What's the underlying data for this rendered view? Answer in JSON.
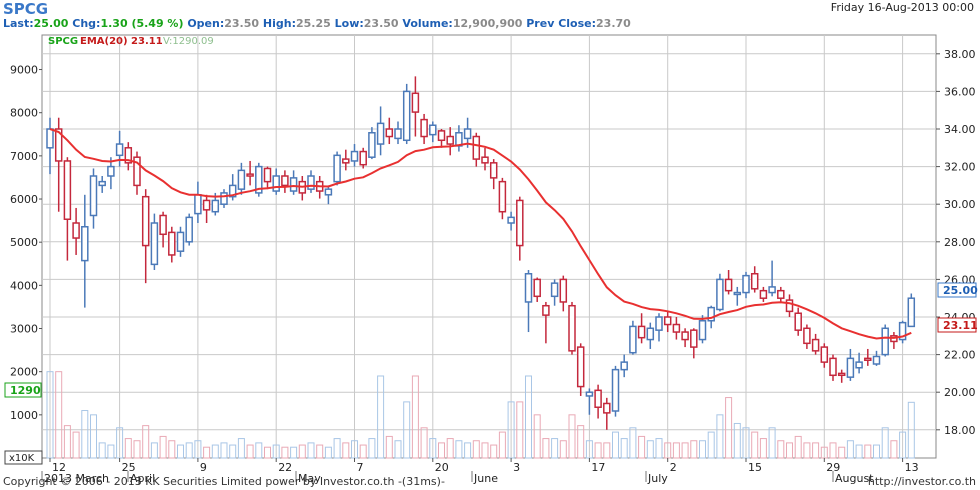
{
  "header": {
    "symbol": "SPCG",
    "datetime": "Friday 16-Aug-2013 00:00",
    "last_label": "Last:",
    "last_value": "25.00",
    "chg_label": "Chg:",
    "chg_value": "1.30 (5.49 %)",
    "open_label": "Open:",
    "open_value": "23.50",
    "high_label": "High:",
    "high_value": "25.25",
    "low_label": "Low:",
    "low_value": "23.50",
    "volume_label": "Volume:",
    "volume_value": "12,900,900",
    "prevclose_label": "Prev Close:",
    "prevclose_value": "23.70"
  },
  "legend": {
    "symbol": "SPCG",
    "ema": "EMA(20) 23.11",
    "volume": "V:1290.09"
  },
  "footer": {
    "copyright": "Copyright © 2006 - 2013 KK Securities Limited power by Investor.co.th  -(31ms)-",
    "url": "http://investor.co.th"
  },
  "colors": {
    "up": "#4b79b8",
    "down": "#c4283c",
    "ema": "#e83030",
    "grid": "#c9c9c9",
    "vol_up": "#a9c6e6",
    "vol_down": "#e9a9b5"
  },
  "chart_data": {
    "type": "candlestick",
    "price_axis": {
      "range": [
        16.5,
        39.0
      ],
      "ticks": [
        "18.00",
        "20.00",
        "22.00",
        "24.00",
        "26.00",
        "28.00",
        "30.00",
        "32.00",
        "34.00",
        "36.00",
        "38.00"
      ]
    },
    "volume_axis": {
      "range": [
        0,
        9800
      ],
      "ticks": [
        "0",
        "1000",
        "2000",
        "3000",
        "4000",
        "5000",
        "6000",
        "7000",
        "8000",
        "9000"
      ],
      "unit_label": "x10K"
    },
    "last_price_tag": "25.00",
    "ema_tag": "23.11",
    "volume_tag": "1290",
    "date_ticks": [
      "12",
      "25",
      "9",
      "22",
      "7",
      "20",
      "3",
      "17",
      "2",
      "15",
      "29",
      "13"
    ],
    "month_labels": [
      "2013 March",
      "April",
      "May",
      "June",
      "July",
      "August"
    ],
    "candles": [
      {
        "o": 33.0,
        "h": 34.6,
        "l": 31.6,
        "c": 34.0,
        "v": 2000
      },
      {
        "o": 34.0,
        "h": 34.6,
        "l": 29.6,
        "c": 32.3,
        "v": 2000
      },
      {
        "o": 32.3,
        "h": 32.5,
        "l": 27.0,
        "c": 29.2,
        "v": 750
      },
      {
        "o": 29.0,
        "h": 29.8,
        "l": 27.3,
        "c": 28.2,
        "v": 600
      },
      {
        "o": 27.0,
        "h": 30.5,
        "l": 24.5,
        "c": 28.8,
        "v": 1100
      },
      {
        "o": 29.4,
        "h": 31.9,
        "l": 28.7,
        "c": 31.5,
        "v": 1000
      },
      {
        "o": 31.0,
        "h": 31.5,
        "l": 30.6,
        "c": 31.2,
        "v": 350
      },
      {
        "o": 31.5,
        "h": 32.5,
        "l": 30.8,
        "c": 32.0,
        "v": 300
      },
      {
        "o": 32.6,
        "h": 33.9,
        "l": 32.0,
        "c": 33.2,
        "v": 700
      },
      {
        "o": 33.0,
        "h": 33.3,
        "l": 31.8,
        "c": 32.2,
        "v": 450
      },
      {
        "o": 32.5,
        "h": 32.8,
        "l": 30.5,
        "c": 31.0,
        "v": 400
      },
      {
        "o": 30.4,
        "h": 30.8,
        "l": 25.8,
        "c": 27.8,
        "v": 750
      },
      {
        "o": 26.8,
        "h": 29.5,
        "l": 26.5,
        "c": 29.0,
        "v": 350
      },
      {
        "o": 29.4,
        "h": 29.6,
        "l": 27.7,
        "c": 28.4,
        "v": 500
      },
      {
        "o": 28.5,
        "h": 28.8,
        "l": 26.9,
        "c": 27.3,
        "v": 400
      },
      {
        "o": 27.5,
        "h": 28.8,
        "l": 27.2,
        "c": 28.5,
        "v": 300
      },
      {
        "o": 28.0,
        "h": 29.5,
        "l": 27.8,
        "c": 29.3,
        "v": 350
      },
      {
        "o": 29.5,
        "h": 31.2,
        "l": 29.0,
        "c": 30.5,
        "v": 400
      },
      {
        "o": 30.2,
        "h": 30.5,
        "l": 29.0,
        "c": 29.7,
        "v": 250
      },
      {
        "o": 29.6,
        "h": 30.6,
        "l": 29.4,
        "c": 30.2,
        "v": 300
      },
      {
        "o": 30.0,
        "h": 30.8,
        "l": 29.8,
        "c": 30.6,
        "v": 350
      },
      {
        "o": 30.4,
        "h": 31.6,
        "l": 30.2,
        "c": 31.0,
        "v": 300
      },
      {
        "o": 30.8,
        "h": 32.2,
        "l": 30.5,
        "c": 31.8,
        "v": 450
      },
      {
        "o": 31.6,
        "h": 32.3,
        "l": 31.0,
        "c": 31.5,
        "v": 300
      },
      {
        "o": 30.6,
        "h": 32.2,
        "l": 30.4,
        "c": 32.0,
        "v": 350
      },
      {
        "o": 31.9,
        "h": 32.0,
        "l": 30.8,
        "c": 31.2,
        "v": 250
      },
      {
        "o": 30.7,
        "h": 31.9,
        "l": 30.5,
        "c": 31.5,
        "v": 300
      },
      {
        "o": 31.5,
        "h": 31.8,
        "l": 30.6,
        "c": 31.0,
        "v": 250
      },
      {
        "o": 30.7,
        "h": 31.8,
        "l": 30.5,
        "c": 31.4,
        "v": 250
      },
      {
        "o": 31.2,
        "h": 31.5,
        "l": 30.2,
        "c": 30.6,
        "v": 300
      },
      {
        "o": 30.8,
        "h": 31.8,
        "l": 30.6,
        "c": 31.5,
        "v": 350
      },
      {
        "o": 31.2,
        "h": 31.5,
        "l": 30.3,
        "c": 30.7,
        "v": 300
      },
      {
        "o": 30.5,
        "h": 31.0,
        "l": 30.0,
        "c": 30.8,
        "v": 250
      },
      {
        "o": 31.2,
        "h": 32.8,
        "l": 31.0,
        "c": 32.6,
        "v": 450
      },
      {
        "o": 32.4,
        "h": 32.9,
        "l": 31.8,
        "c": 32.2,
        "v": 350
      },
      {
        "o": 32.3,
        "h": 33.2,
        "l": 32.0,
        "c": 32.8,
        "v": 400
      },
      {
        "o": 32.8,
        "h": 33.0,
        "l": 31.9,
        "c": 32.1,
        "v": 300
      },
      {
        "o": 32.5,
        "h": 34.1,
        "l": 32.4,
        "c": 33.8,
        "v": 450
      },
      {
        "o": 33.2,
        "h": 35.2,
        "l": 32.6,
        "c": 34.3,
        "v": 1900
      },
      {
        "o": 34.0,
        "h": 34.6,
        "l": 33.2,
        "c": 33.6,
        "v": 500
      },
      {
        "o": 33.5,
        "h": 34.4,
        "l": 33.2,
        "c": 34.0,
        "v": 400
      },
      {
        "o": 33.4,
        "h": 36.4,
        "l": 33.2,
        "c": 36.0,
        "v": 1300
      },
      {
        "o": 35.9,
        "h": 36.8,
        "l": 33.6,
        "c": 34.9,
        "v": 1900
      },
      {
        "o": 34.5,
        "h": 34.8,
        "l": 33.2,
        "c": 33.6,
        "v": 700
      },
      {
        "o": 33.7,
        "h": 34.4,
        "l": 33.3,
        "c": 34.2,
        "v": 450
      },
      {
        "o": 33.9,
        "h": 34.0,
        "l": 33.0,
        "c": 33.4,
        "v": 350
      },
      {
        "o": 33.6,
        "h": 34.1,
        "l": 32.6,
        "c": 33.2,
        "v": 450
      },
      {
        "o": 33.1,
        "h": 34.2,
        "l": 32.8,
        "c": 33.8,
        "v": 400
      },
      {
        "o": 33.5,
        "h": 34.6,
        "l": 33.0,
        "c": 34.0,
        "v": 350
      },
      {
        "o": 33.6,
        "h": 33.8,
        "l": 32.0,
        "c": 32.4,
        "v": 400
      },
      {
        "o": 32.5,
        "h": 33.0,
        "l": 31.8,
        "c": 32.2,
        "v": 350
      },
      {
        "o": 32.2,
        "h": 32.4,
        "l": 30.8,
        "c": 31.4,
        "v": 300
      },
      {
        "o": 31.2,
        "h": 31.4,
        "l": 29.2,
        "c": 29.6,
        "v": 600
      },
      {
        "o": 29.0,
        "h": 29.6,
        "l": 28.6,
        "c": 29.3,
        "v": 1300
      },
      {
        "o": 30.2,
        "h": 30.4,
        "l": 27.0,
        "c": 27.8,
        "v": 1300
      },
      {
        "o": 24.8,
        "h": 26.5,
        "l": 23.2,
        "c": 26.3,
        "v": 1900
      },
      {
        "o": 26.0,
        "h": 26.1,
        "l": 24.8,
        "c": 25.1,
        "v": 1000
      },
      {
        "o": 24.6,
        "h": 24.8,
        "l": 22.6,
        "c": 24.1,
        "v": 450
      },
      {
        "o": 25.1,
        "h": 26.0,
        "l": 24.6,
        "c": 25.8,
        "v": 450
      },
      {
        "o": 26.0,
        "h": 26.2,
        "l": 24.3,
        "c": 24.8,
        "v": 400
      },
      {
        "o": 24.6,
        "h": 24.8,
        "l": 22.0,
        "c": 22.2,
        "v": 1000
      },
      {
        "o": 22.4,
        "h": 22.6,
        "l": 19.8,
        "c": 20.3,
        "v": 750
      },
      {
        "o": 19.8,
        "h": 20.2,
        "l": 18.8,
        "c": 20.0,
        "v": 400
      },
      {
        "o": 20.1,
        "h": 20.4,
        "l": 18.6,
        "c": 19.2,
        "v": 350
      },
      {
        "o": 19.4,
        "h": 19.7,
        "l": 18.0,
        "c": 18.9,
        "v": 350
      },
      {
        "o": 19.0,
        "h": 21.4,
        "l": 18.7,
        "c": 21.2,
        "v": 600
      },
      {
        "o": 21.2,
        "h": 22.0,
        "l": 20.8,
        "c": 21.6,
        "v": 450
      },
      {
        "o": 22.1,
        "h": 23.8,
        "l": 22.0,
        "c": 23.5,
        "v": 700
      },
      {
        "o": 23.5,
        "h": 24.2,
        "l": 22.6,
        "c": 22.9,
        "v": 500
      },
      {
        "o": 22.8,
        "h": 23.7,
        "l": 22.3,
        "c": 23.4,
        "v": 400
      },
      {
        "o": 23.3,
        "h": 24.2,
        "l": 22.7,
        "c": 24.0,
        "v": 450
      },
      {
        "o": 24.0,
        "h": 24.3,
        "l": 23.2,
        "c": 23.6,
        "v": 350
      },
      {
        "o": 23.6,
        "h": 24.0,
        "l": 22.8,
        "c": 23.2,
        "v": 350
      },
      {
        "o": 23.2,
        "h": 23.4,
        "l": 22.4,
        "c": 22.8,
        "v": 350
      },
      {
        "o": 23.3,
        "h": 23.4,
        "l": 21.8,
        "c": 22.4,
        "v": 400
      },
      {
        "o": 22.8,
        "h": 24.1,
        "l": 22.6,
        "c": 23.8,
        "v": 400
      },
      {
        "o": 23.8,
        "h": 24.6,
        "l": 23.4,
        "c": 24.5,
        "v": 600
      },
      {
        "o": 24.4,
        "h": 26.3,
        "l": 24.3,
        "c": 26.0,
        "v": 1000
      },
      {
        "o": 26.0,
        "h": 26.5,
        "l": 25.2,
        "c": 25.4,
        "v": 1400
      },
      {
        "o": 25.2,
        "h": 25.6,
        "l": 24.6,
        "c": 25.3,
        "v": 800
      },
      {
        "o": 25.3,
        "h": 26.4,
        "l": 25.0,
        "c": 26.2,
        "v": 700
      },
      {
        "o": 26.3,
        "h": 26.7,
        "l": 25.3,
        "c": 25.5,
        "v": 600
      },
      {
        "o": 25.4,
        "h": 25.6,
        "l": 24.8,
        "c": 25.0,
        "v": 450
      },
      {
        "o": 25.3,
        "h": 27.0,
        "l": 25.1,
        "c": 25.6,
        "v": 700
      },
      {
        "o": 25.4,
        "h": 25.6,
        "l": 24.8,
        "c": 25.0,
        "v": 400
      },
      {
        "o": 24.9,
        "h": 25.2,
        "l": 24.0,
        "c": 24.3,
        "v": 350
      },
      {
        "o": 24.2,
        "h": 24.5,
        "l": 23.0,
        "c": 23.3,
        "v": 500
      },
      {
        "o": 23.4,
        "h": 23.6,
        "l": 22.3,
        "c": 22.6,
        "v": 350
      },
      {
        "o": 22.8,
        "h": 23.1,
        "l": 22.0,
        "c": 22.2,
        "v": 350
      },
      {
        "o": 22.4,
        "h": 22.6,
        "l": 21.3,
        "c": 21.6,
        "v": 250
      },
      {
        "o": 21.8,
        "h": 22.0,
        "l": 20.6,
        "c": 20.9,
        "v": 350
      },
      {
        "o": 21.0,
        "h": 21.2,
        "l": 20.5,
        "c": 20.9,
        "v": 250
      },
      {
        "o": 20.8,
        "h": 22.3,
        "l": 20.6,
        "c": 21.8,
        "v": 400
      },
      {
        "o": 21.3,
        "h": 22.1,
        "l": 21.0,
        "c": 21.6,
        "v": 300
      },
      {
        "o": 21.8,
        "h": 22.3,
        "l": 21.4,
        "c": 21.7,
        "v": 300
      },
      {
        "o": 21.5,
        "h": 22.2,
        "l": 21.4,
        "c": 21.9,
        "v": 300
      },
      {
        "o": 22.0,
        "h": 23.6,
        "l": 21.9,
        "c": 23.4,
        "v": 700
      },
      {
        "o": 23.0,
        "h": 23.2,
        "l": 22.3,
        "c": 22.7,
        "v": 400
      },
      {
        "o": 22.8,
        "h": 23.8,
        "l": 22.6,
        "c": 23.7,
        "v": 600
      },
      {
        "o": 23.5,
        "h": 25.25,
        "l": 23.5,
        "c": 25.0,
        "v": 1290
      }
    ]
  }
}
